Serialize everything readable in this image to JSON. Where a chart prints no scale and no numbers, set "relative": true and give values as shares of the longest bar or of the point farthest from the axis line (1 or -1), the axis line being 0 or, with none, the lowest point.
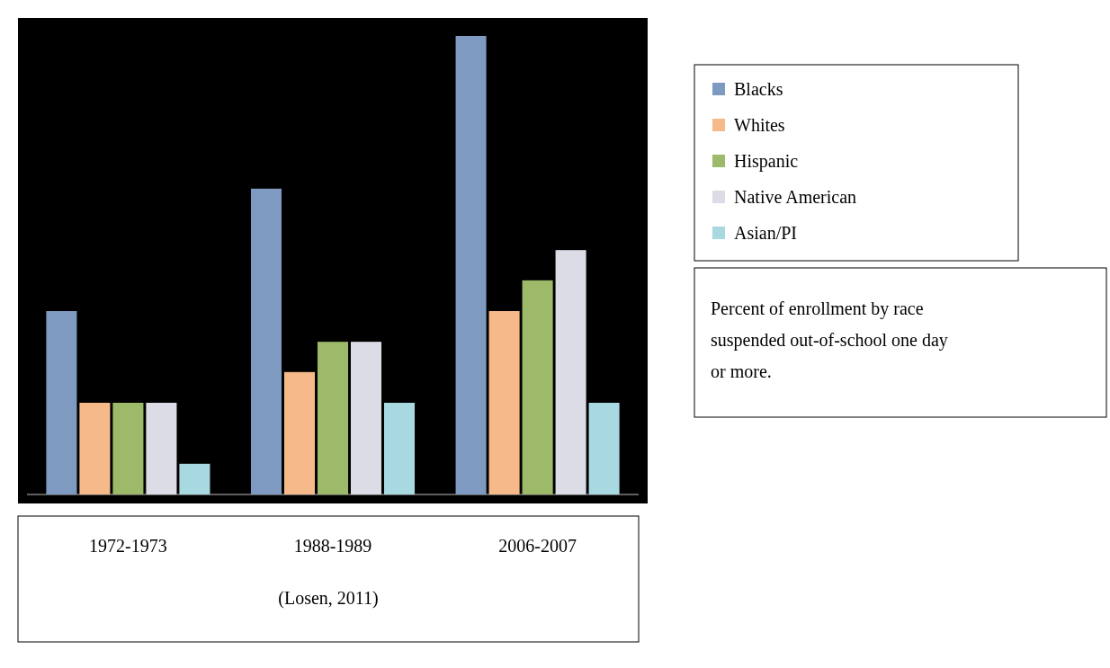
{
  "chart_data": {
    "type": "bar",
    "relative": true,
    "categories": [
      "1972-1973",
      "1988-1989",
      "2006-2007"
    ],
    "series": [
      {
        "name": "Blacks",
        "color": "#7f9ac0",
        "values": [
          0.4,
          0.667,
          1
        ]
      },
      {
        "name": "Whites",
        "color": "#f6b98a",
        "values": [
          0.2,
          0.267,
          0.4
        ]
      },
      {
        "name": "Hispanic",
        "color": "#9cba6a",
        "values": [
          0.2,
          0.333,
          0.467
        ]
      },
      {
        "name": "Native American",
        "color": "#dcdce6",
        "values": [
          0.2,
          0.333,
          0.533
        ]
      },
      {
        "name": "Asian/PI",
        "color": "#a8d8e0",
        "values": [
          0.067,
          0.2,
          0.2
        ]
      }
    ],
    "legend": "right",
    "annotations": [
      "Percent of enrollment by race suspended out-of-school one day or more.",
      "(Losen, 2011)"
    ]
  }
}
